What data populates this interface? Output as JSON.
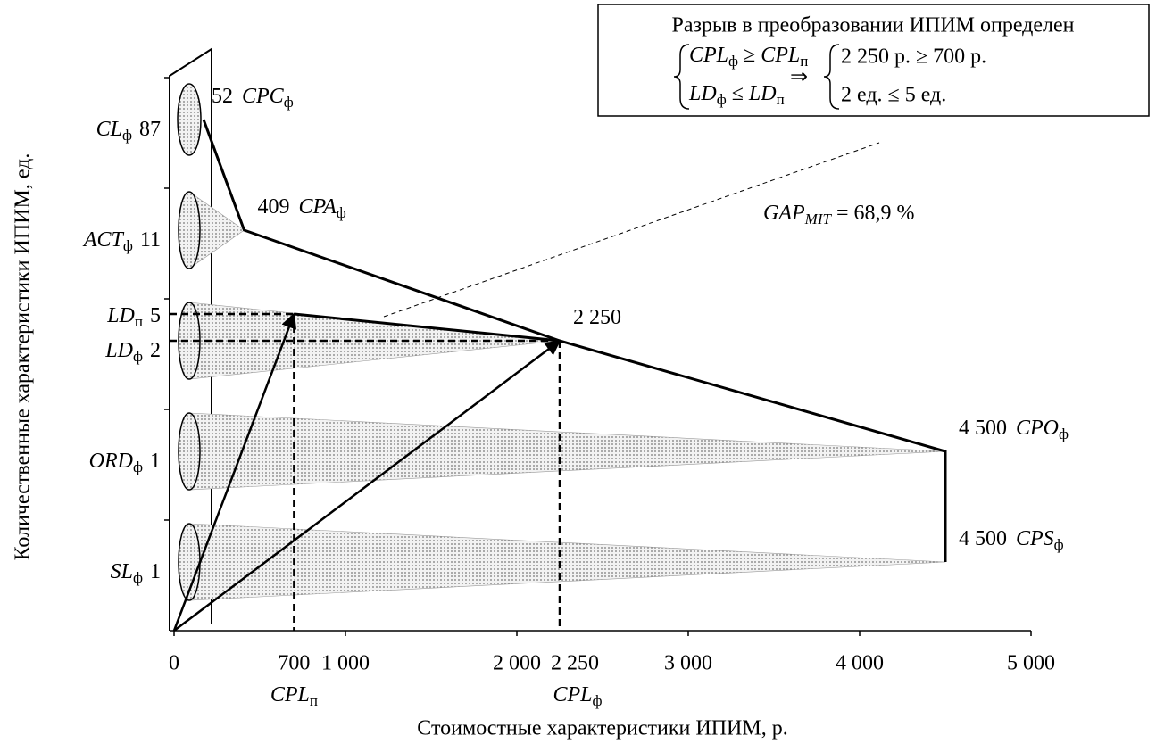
{
  "chart_data": {
    "type": "cone-bar",
    "y_label": "Количественные характеристики ИПИМ, ед.",
    "x_label": "Стоимостные характеристики ИПИМ, р.",
    "xlim": [
      0,
      5000
    ],
    "xticks": [
      0,
      {
        "value": 1000,
        "label": "1 000"
      },
      {
        "value": 2000,
        "label": "2 000"
      },
      {
        "value": 3000,
        "label": "3 000"
      },
      {
        "value": 4000,
        "label": "4 000"
      },
      {
        "value": 5000,
        "label": "5 000"
      }
    ],
    "color": "#9a9a9a",
    "bars": [
      {
        "name": [
          {
            "text": "SL",
            "italic": true
          },
          {
            "text": "ф",
            "sub": true
          }
        ],
        "count": 1,
        "value": 4500,
        "value_label": "4 500",
        "code": [
          {
            "text": "CPS",
            "italic": true
          },
          {
            "text": "ф",
            "sub": true
          }
        ]
      },
      {
        "name": [
          {
            "text": "ORD",
            "italic": true
          },
          {
            "text": "ф",
            "sub": true
          }
        ],
        "count": 1,
        "value": 4500,
        "value_label": "4 500",
        "code": [
          {
            "text": "CPO",
            "italic": true
          },
          {
            "text": "ф",
            "sub": true
          }
        ]
      },
      {
        "name": [
          {
            "text": "LD",
            "italic": true
          },
          {
            "text": "ф",
            "sub": true
          }
        ],
        "count": 2,
        "value": 2250,
        "value_label": "2 250",
        "code": [],
        "plan": {
          "name": [
            {
              "text": "LD",
              "italic": true
            },
            {
              "text": "п",
              "sub": true
            }
          ],
          "count": 5
        }
      },
      {
        "name": [
          {
            "text": "ACT",
            "italic": true
          },
          {
            "text": "ф",
            "sub": true
          }
        ],
        "count": 11,
        "value": 409,
        "value_label": "409",
        "code": [
          {
            "text": "CPA",
            "italic": true
          },
          {
            "text": "ф",
            "sub": true
          }
        ]
      },
      {
        "name": [
          {
            "text": "CL",
            "italic": true
          },
          {
            "text": "ф",
            "sub": true
          }
        ],
        "count": 87,
        "value": 52,
        "value_label": "52",
        "code": [
          {
            "text": "CPC",
            "italic": true
          },
          {
            "text": "ф",
            "sub": true
          }
        ]
      }
    ],
    "cpl": [
      {
        "value": 700,
        "name": [
          {
            "text": "CPL",
            "italic": true
          },
          {
            "text": "п",
            "sub": true
          }
        ]
      },
      {
        "value": 2250,
        "value_label": "2 250",
        "name": [
          {
            "text": "CPL",
            "italic": true
          },
          {
            "text": "ф",
            "sub": true
          }
        ]
      }
    ],
    "gap": [
      {
        "text": "GAP",
        "italic": true
      },
      {
        "text": "MIT",
        "sub": true,
        "italic": true
      },
      {
        "text": " = 68,9 %"
      }
    ],
    "box": {
      "title": "Разрыв в преобразовании ИПИМ определен",
      "left": [
        [
          {
            "text": "CPL",
            "italic": true
          },
          {
            "text": "ф",
            "sub": true
          },
          {
            "text": " ≥ "
          },
          {
            "text": "CPL",
            "italic": true
          },
          {
            "text": "п",
            "sub": true
          }
        ],
        [
          {
            "text": "LD",
            "italic": true
          },
          {
            "text": "ф",
            "sub": true
          },
          {
            "text": " ≤ "
          },
          {
            "text": "LD",
            "italic": true
          },
          {
            "text": "п",
            "sub": true
          }
        ]
      ],
      "implies": "⇒",
      "right": [
        "2 250 р. ≥ 700 р.",
        "2 ед. ≤ 5 ед."
      ]
    }
  }
}
